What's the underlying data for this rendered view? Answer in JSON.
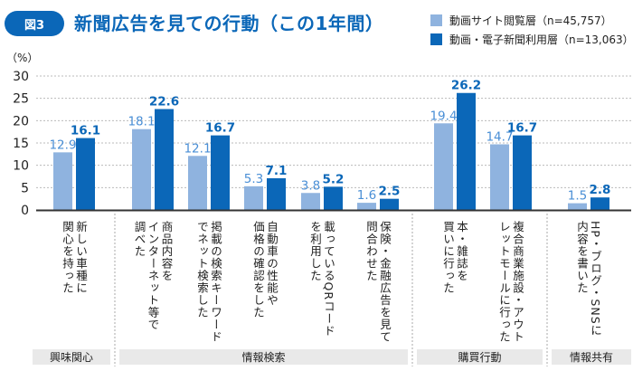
{
  "figure": {
    "badge": "図3",
    "title": "新聞広告を見ての行動（この1年間）",
    "unit": "（%）"
  },
  "colors": {
    "series_light": "#8fb3df",
    "series_dark": "#0b67b8",
    "light_label": "#4a8fd6",
    "axis": "#333333",
    "grid": "#bbbbbb",
    "group_box": "#e9e9e9"
  },
  "chart_data": {
    "type": "bar",
    "title": "新聞広告を見ての行動（この1年間）",
    "xlabel": "",
    "ylabel": "（%）",
    "ylim": [
      0,
      30
    ],
    "yticks": [
      0,
      5,
      10,
      15,
      20,
      25,
      30
    ],
    "grid": true,
    "legend_position": "top-right",
    "categories": [
      "新しい車種に関心を持った",
      "商品内容をインターネット等で調べた",
      "掲載の検索キーワードでネット検索した",
      "自動車の性能や価格の確認をした",
      "載っているQRコードを利用した",
      "保険・金融広告を見て問合わせた",
      "本・雑誌を買いに行った",
      "複合商業施設・アウトレットモールに行った",
      "HP・ブログ・SNSに内容を書いた"
    ],
    "category_lines": [
      [
        "新しい車種に",
        "関心を持った"
      ],
      [
        "商品内容を",
        "インターネット等で",
        "調べた"
      ],
      [
        "掲載の検索キーワード",
        "でネット検索した"
      ],
      [
        "自動車の性能や",
        "価格の確認をした"
      ],
      [
        "載っているQRコード",
        "を利用した"
      ],
      [
        "保険・金融広告を見て",
        "問合わせた"
      ],
      [
        "本・雑誌を",
        "買いに行った"
      ],
      [
        "複合商業施設・アウト",
        "レットモールに行った"
      ],
      [
        "HP・ブログ・SNSに",
        "内容を書いた"
      ]
    ],
    "series": [
      {
        "name": "動画サイト閲覧層（n=45,757）",
        "values": [
          12.9,
          18.1,
          12.1,
          5.3,
          3.8,
          1.6,
          19.4,
          14.7,
          1.5
        ]
      },
      {
        "name": "動画・電子新聞利用層（n=13,063）",
        "values": [
          16.1,
          22.6,
          16.7,
          7.1,
          5.2,
          2.5,
          26.2,
          16.7,
          2.8
        ]
      }
    ],
    "groups": [
      {
        "label": "興味関心",
        "categories": [
          0
        ]
      },
      {
        "label": "情報検索",
        "categories": [
          1,
          2,
          3,
          4,
          5
        ]
      },
      {
        "label": "購買行動",
        "categories": [
          6,
          7
        ]
      },
      {
        "label": "情報共有",
        "categories": [
          8
        ]
      }
    ]
  }
}
